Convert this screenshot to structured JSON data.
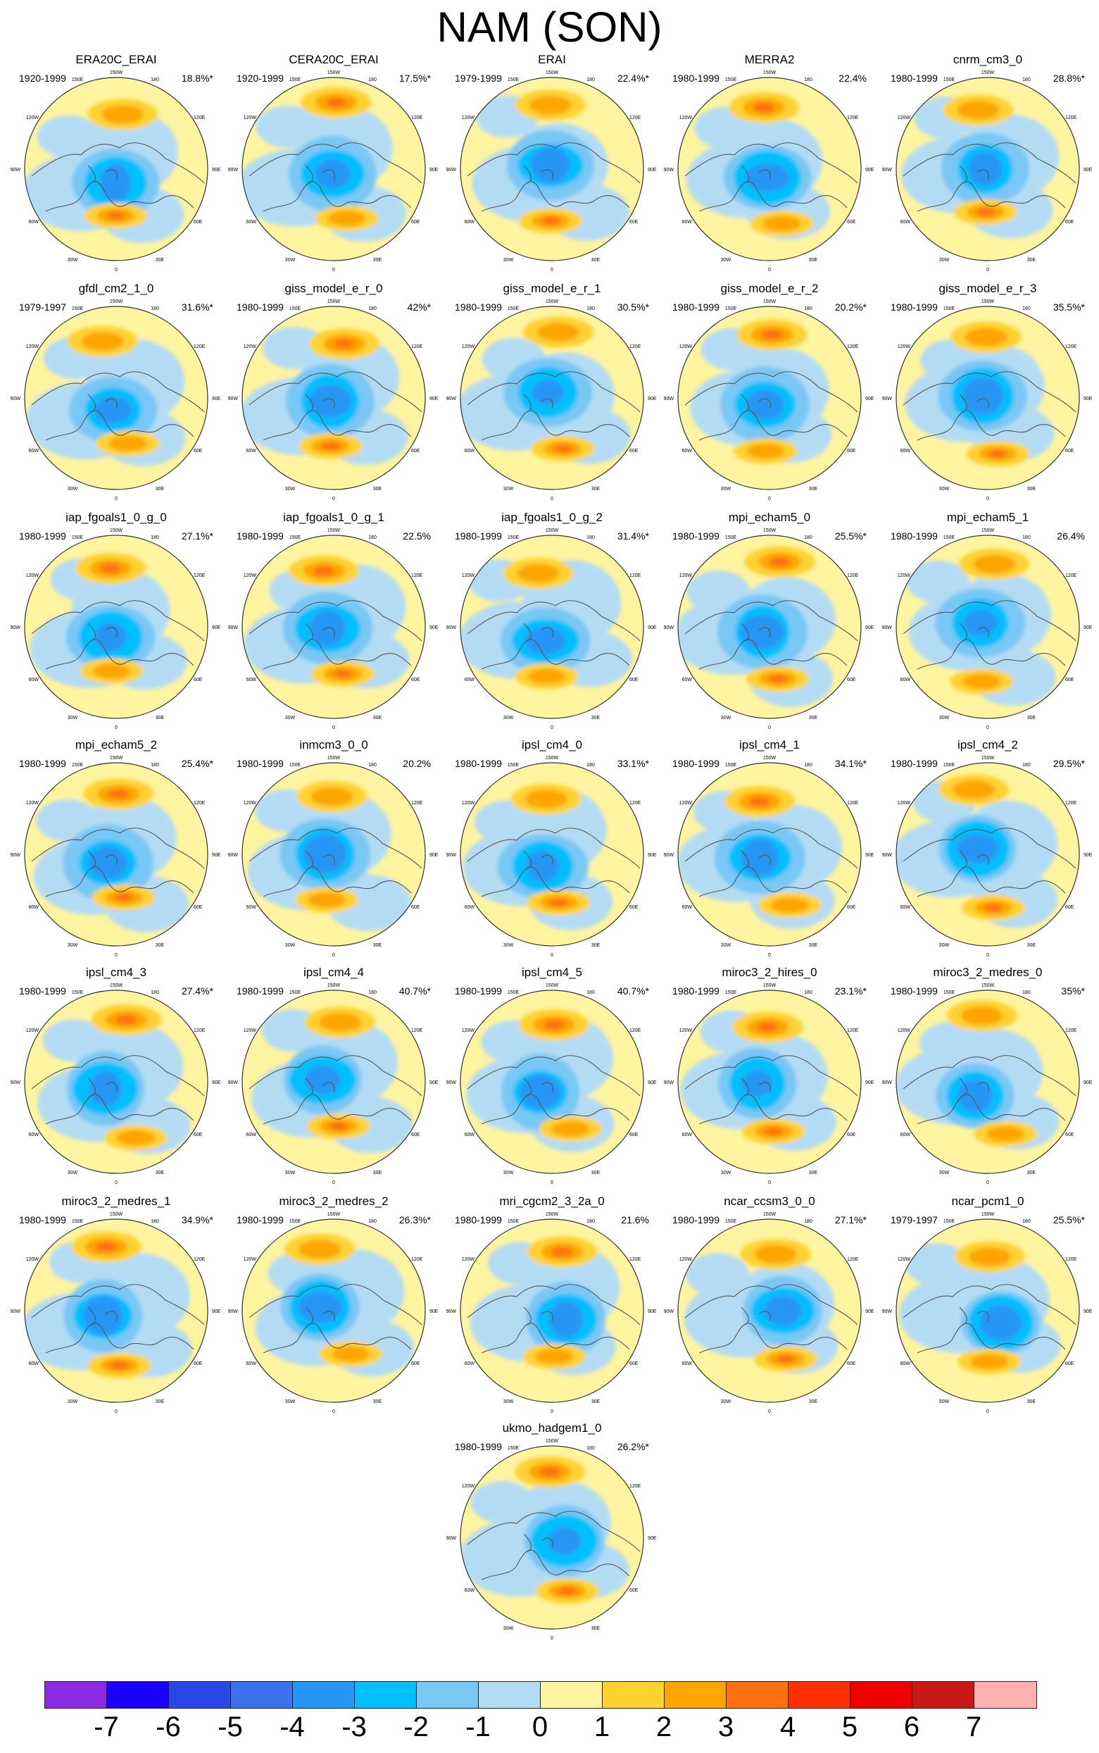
{
  "title": "NAM (SON)",
  "panels": [
    {
      "name": "ERA20C_ERAI",
      "period": "1920-1999",
      "pct": "18.8%*"
    },
    {
      "name": "CERA20C_ERAI",
      "period": "1920-1999",
      "pct": "17.5%*"
    },
    {
      "name": "ERAI",
      "period": "1979-1999",
      "pct": "22.4%*"
    },
    {
      "name": "MERRA2",
      "period": "1980-1999",
      "pct": "22.4%"
    },
    {
      "name": "cnrm_cm3_0",
      "period": "1980-1999",
      "pct": "28.8%*"
    },
    {
      "name": "gfdl_cm2_1_0",
      "period": "1979-1997",
      "pct": "31.6%*"
    },
    {
      "name": "giss_model_e_r_0",
      "period": "1980-1999",
      "pct": "42%*"
    },
    {
      "name": "giss_model_e_r_1",
      "period": "1980-1999",
      "pct": "30.5%*"
    },
    {
      "name": "giss_model_e_r_2",
      "period": "1980-1999",
      "pct": "20.2%*"
    },
    {
      "name": "giss_model_e_r_3",
      "period": "1980-1999",
      "pct": "35.5%*"
    },
    {
      "name": "iap_fgoals1_0_g_0",
      "period": "1980-1999",
      "pct": "27.1%*"
    },
    {
      "name": "iap_fgoals1_0_g_1",
      "period": "1980-1999",
      "pct": "22.5%"
    },
    {
      "name": "iap_fgoals1_0_g_2",
      "period": "1980-1999",
      "pct": "31.4%*"
    },
    {
      "name": "mpi_echam5_0",
      "period": "1980-1999",
      "pct": "25.5%*"
    },
    {
      "name": "mpi_echam5_1",
      "period": "1980-1999",
      "pct": "26.4%"
    },
    {
      "name": "mpi_echam5_2",
      "period": "1980-1999",
      "pct": "25.4%*"
    },
    {
      "name": "inmcm3_0_0",
      "period": "1980-1999",
      "pct": "20.2%"
    },
    {
      "name": "ipsl_cm4_0",
      "period": "1980-1999",
      "pct": "33.1%*"
    },
    {
      "name": "ipsl_cm4_1",
      "period": "1980-1999",
      "pct": "34.1%*"
    },
    {
      "name": "ipsl_cm4_2",
      "period": "1980-1999",
      "pct": "29.5%*"
    },
    {
      "name": "ipsl_cm4_3",
      "period": "1980-1999",
      "pct": "27.4%*"
    },
    {
      "name": "ipsl_cm4_4",
      "period": "1980-1999",
      "pct": "40.7%*"
    },
    {
      "name": "ipsl_cm4_5",
      "period": "1980-1999",
      "pct": "40.7%*"
    },
    {
      "name": "miroc3_2_hires_0",
      "period": "1980-1999",
      "pct": "23.1%*"
    },
    {
      "name": "miroc3_2_medres_0",
      "period": "1980-1999",
      "pct": "35%*"
    },
    {
      "name": "miroc3_2_medres_1",
      "period": "1980-1999",
      "pct": "34.9%*"
    },
    {
      "name": "miroc3_2_medres_2",
      "period": "1980-1999",
      "pct": "26.3%*"
    },
    {
      "name": "mri_cgcm2_3_2a_0",
      "period": "1980-1999",
      "pct": "21.6%"
    },
    {
      "name": "ncar_ccsm3_0_0",
      "period": "1980-1999",
      "pct": "27.1%*"
    },
    {
      "name": "ncar_pcm1_0",
      "period": "1979-1997",
      "pct": "25.5%*"
    },
    {
      "name": "ukmo_hadgem1_0",
      "period": "1980-1999",
      "pct": "26.2%*"
    }
  ],
  "lon_labels": [
    "180",
    "150W",
    "150E",
    "120W",
    "120E",
    "90W",
    "90E",
    "60W",
    "60E",
    "30W",
    "30E",
    "0"
  ],
  "colorbar": {
    "colors": [
      "#8a2be2",
      "#1a00ff",
      "#2847e6",
      "#3a72ec",
      "#2596f5",
      "#00bfff",
      "#79c7f5",
      "#b3dcf4",
      "#fff4a0",
      "#ffd230",
      "#ffa500",
      "#ff7010",
      "#ff3000",
      "#ee0000",
      "#c81818",
      "#ffb0b0"
    ],
    "labels": [
      "-7",
      "-6",
      "-5",
      "-4",
      "-3",
      "-2",
      "-1",
      "0",
      "1",
      "2",
      "3",
      "4",
      "5",
      "6",
      "7"
    ]
  }
}
